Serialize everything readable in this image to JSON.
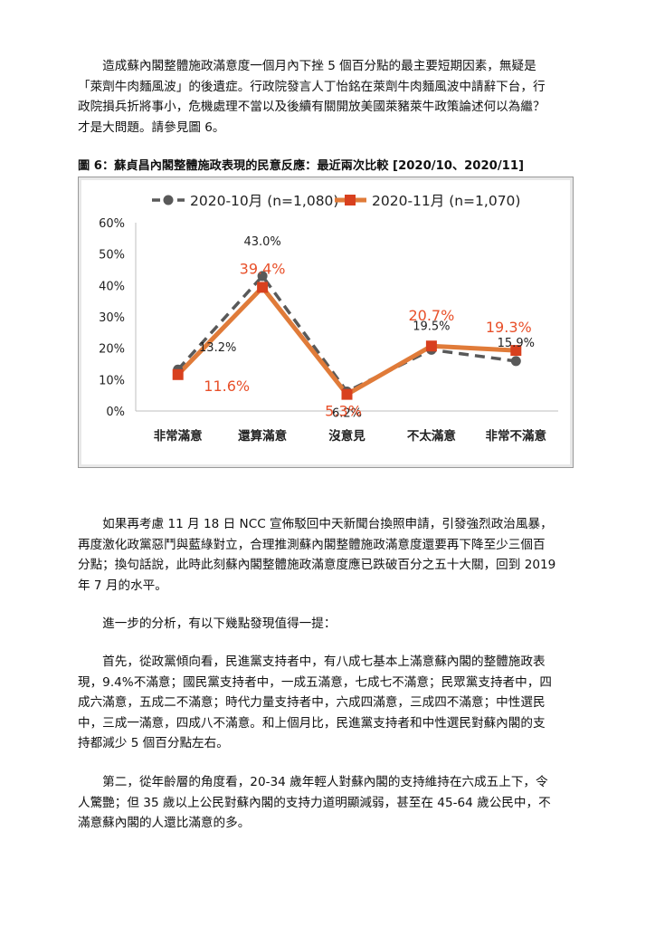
{
  "paragraphs": {
    "p1": [
      "　　造成蘇內閣整體施政滿意度一個月內下挫 5 個百分點的最主要短期因素，無疑是",
      "「萊劑牛肉麵風波」的後遺症。行政院發言人丁怡銘在萊劑牛肉麵風波中請辭下台，行",
      "政院損兵折將事小，危機處理不當以及後續有關開放美國萊豬萊牛政策論述何以為繼？",
      "才是大問題。請參見圖 6。"
    ],
    "p2": [
      "　　如果再考慮 11 月 18 日 NCC 宣佈駁回中天新聞台換照申請，引發強烈政治風暴，",
      "再度激化政黨惡鬥與藍綠對立，合理推測蘇內閣整體施政滿意度還要再下降至少三個百",
      "分點；換句話說，此時此刻蘇內閣整體施政滿意度應已跌破百分之五十大關，回到 2019",
      "年 7 月的水平。"
    ],
    "p3": [
      "　　進一步的分析，有以下幾點發現值得一提："
    ],
    "p4": [
      "　　首先，從政黨傾向看，民進黨支持者中，有八成七基本上滿意蘇內閣的整體施政表",
      "現，9.4%不滿意；國民黨支持者中，一成五滿意，七成七不滿意；民眾黨支持者中，四",
      "成六滿意，五成二不滿意；時代力量支持者中，六成四滿意，三成四不滿意；中性選民",
      "中，三成一滿意，四成八不滿意。和上個月比，民進黨支持者和中性選民對蘇內閣的支",
      "持都減少 5 個百分點左右。"
    ],
    "p5": [
      "　　第二，從年齡層的角度看，20-34 歲年輕人對蘇內閣的支持維持在六成五上下，令",
      "人驚艷；但 35 歲以上公民對蘇內閣的支持力道明顯減弱，甚至在 45-64 歲公民中，不",
      "滿意蘇內閣的人還比滿意的多。"
    ]
  },
  "figure_title": "圖 6：蘇貞昌內閣整體施政表現的民意反應：最近兩次比較 [2020/10、2020/11]",
  "chart_data": {
    "type": "line",
    "categories": [
      "非常滿意",
      "還算滿意",
      "沒意見",
      "不太滿意",
      "非常不滿意"
    ],
    "ylim": [
      0,
      60
    ],
    "yticks": [
      "0%",
      "10%",
      "20%",
      "30%",
      "40%",
      "50%",
      "60%"
    ],
    "legend_position": "top",
    "series": [
      {
        "name": "2020-10月 (n=1,080)",
        "values": [
          13.2,
          43.0,
          6.2,
          19.5,
          15.9
        ],
        "labels": [
          "13.2%",
          "43.0%",
          "6.2%",
          "19.5%",
          "15.9%"
        ],
        "color": "#595959",
        "style": "dashed",
        "marker": "circle"
      },
      {
        "name": "2020-11月 (n=1,070)",
        "values": [
          11.6,
          39.4,
          5.3,
          20.7,
          19.3
        ],
        "labels": [
          "11.6%",
          "39.4%",
          "5.3%",
          "20.7%",
          "19.3%"
        ],
        "color": "#E07B39",
        "marker_color": "#D8401E",
        "label_color": "#E8502A",
        "style": "solid",
        "marker": "square"
      }
    ]
  }
}
